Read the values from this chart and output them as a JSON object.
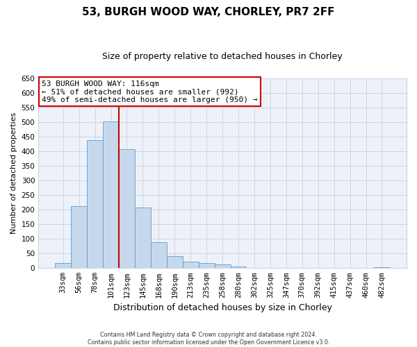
{
  "title": "53, BURGH WOOD WAY, CHORLEY, PR7 2FF",
  "subtitle": "Size of property relative to detached houses in Chorley",
  "xlabel": "Distribution of detached houses by size in Chorley",
  "ylabel": "Number of detached properties",
  "bin_labels": [
    "33sqm",
    "56sqm",
    "78sqm",
    "101sqm",
    "123sqm",
    "145sqm",
    "168sqm",
    "190sqm",
    "213sqm",
    "235sqm",
    "258sqm",
    "280sqm",
    "302sqm",
    "325sqm",
    "347sqm",
    "370sqm",
    "392sqm",
    "415sqm",
    "437sqm",
    "460sqm",
    "482sqm"
  ],
  "bar_heights": [
    18,
    213,
    437,
    503,
    408,
    207,
    88,
    40,
    23,
    18,
    12,
    5,
    0,
    0,
    0,
    0,
    0,
    0,
    0,
    0,
    4
  ],
  "bar_color": "#c6d9ec",
  "bar_edge_color": "#5b9bd5",
  "vline_color": "#cc0000",
  "vline_x": 4.0,
  "annotation_line1": "53 BURGH WOOD WAY: 116sqm",
  "annotation_line2": "← 51% of detached houses are smaller (992)",
  "annotation_line3": "49% of semi-detached houses are larger (950) →",
  "annotation_box_color": "#ffffff",
  "annotation_box_edge_color": "#cc0000",
  "ylim": [
    0,
    650
  ],
  "yticks": [
    0,
    50,
    100,
    150,
    200,
    250,
    300,
    350,
    400,
    450,
    500,
    550,
    600,
    650
  ],
  "footer_line1": "Contains HM Land Registry data © Crown copyright and database right 2024.",
  "footer_line2": "Contains public sector information licensed under the Open Government Licence v3.0.",
  "background_color": "#ffffff",
  "plot_bg_color": "#eef2f8",
  "grid_color": "#c8d4e8",
  "title_fontsize": 11,
  "subtitle_fontsize": 9,
  "ylabel_fontsize": 8,
  "xlabel_fontsize": 9,
  "annotation_fontsize": 8,
  "tick_fontsize": 7.5
}
